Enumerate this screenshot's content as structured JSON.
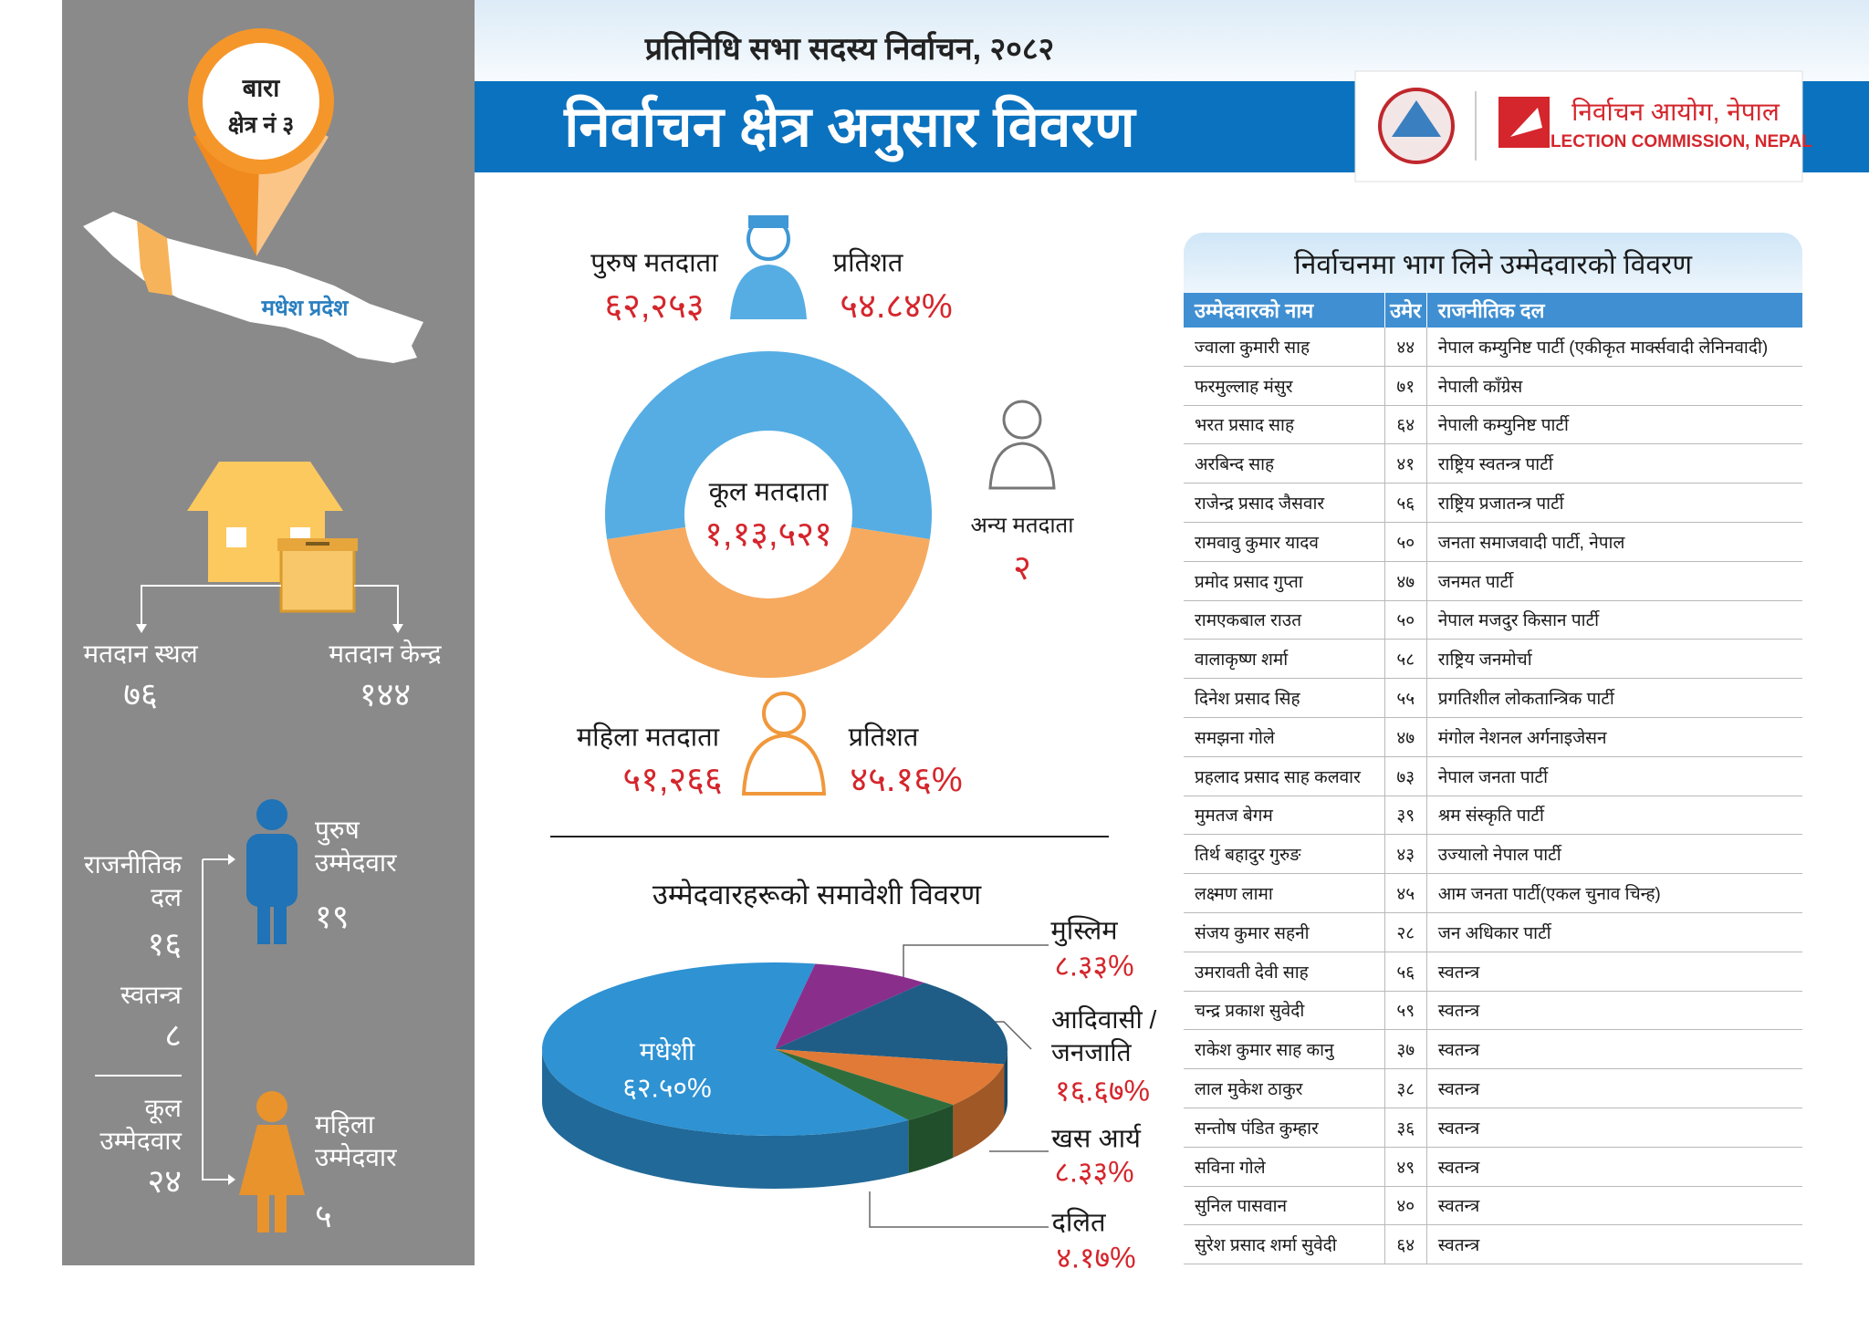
{
  "header": {
    "subtitle": "प्रतिनिधि सभा सदस्य निर्वाचन, २०८२",
    "title": "निर्वाचन क्षेत्र अनुसार विवरण",
    "org_name_np": "निर्वाचन आयोग, नेपाल",
    "org_name_en": "ELECTION COMMISSION, NEPAL"
  },
  "sidebar": {
    "district": "बारा",
    "constituency": "क्षेत्र नं ३",
    "province": "मधेश प्रदेश",
    "polling_places": {
      "label": "मतदान स्थल",
      "value": "७६"
    },
    "polling_centers": {
      "label": "मतदान केन्द्र",
      "value": "१४४"
    },
    "party_candidates": {
      "label": "राजनीतिक दल",
      "value": "१६"
    },
    "independent_candidates": {
      "label": "स्वतन्त्र",
      "value": "८"
    },
    "total_candidates": {
      "label": "कूल उम्मेदवार",
      "value": "२४"
    },
    "male_candidates": {
      "label": "पुरुष उम्मेदवार",
      "value": "१९"
    },
    "female_candidates": {
      "label": "महिला उम्मेदवार",
      "value": "५"
    }
  },
  "chart_data": [
    {
      "type": "donut",
      "center_title": "कूल मतदाता",
      "center_value": "१,१३,५२१",
      "categories": [
        "पुरुष मतदाता",
        "महिला मतदाता",
        "अन्य मतदाता"
      ],
      "values": [
        62253,
        51266,
        2
      ],
      "value_labels": [
        "६२,२५३",
        "५१,२६६",
        "२"
      ],
      "colors": [
        "#56ade3",
        "#f6aa5f",
        "#9a9a9a"
      ],
      "share_title": "प्रतिशत",
      "share_labels": [
        "५४.८४%",
        "४५.१६%"
      ]
    },
    {
      "type": "pie3d",
      "title": "उम्मेदवारहरूको समावेशी विवरण",
      "categories": [
        "मुस्लिम",
        "आदिवासी / जनजाति",
        "खस आर्य",
        "दलित",
        "मधेशी"
      ],
      "values": [
        8.33,
        16.67,
        8.33,
        4.17,
        62.5
      ],
      "value_labels": [
        "८.३३%",
        "१६.६७%",
        "८.३३%",
        "४.१७%",
        "६२.५०%"
      ],
      "colors": [
        "#8a2e8c",
        "#1f5d86",
        "#e07a36",
        "#2f6e3c",
        "#2e92d3"
      ]
    }
  ],
  "table": {
    "title": "निर्वाचनमा भाग लिने उम्मेदवारको विवरण",
    "columns": [
      "उम्मेदवारको नाम",
      "उमेर",
      "राजनीतिक दल"
    ],
    "rows": [
      [
        "ज्वाला कुमारी साह",
        "४४",
        "नेपाल कम्युनिष्ट पार्टी (एकीकृत मार्क्सवादी लेनिनवादी)"
      ],
      [
        "फरमुल्लाह मंसुर",
        "७१",
        "नेपाली काँग्रेस"
      ],
      [
        "भरत प्रसाद साह",
        "६४",
        "नेपाली कम्युनिष्ट पार्टी"
      ],
      [
        "अरबिन्द साह",
        "४१",
        "राष्ट्रिय स्वतन्त्र पार्टी"
      ],
      [
        "राजेन्द्र प्रसाद जैसवार",
        "५६",
        "राष्ट्रिय प्रजातन्त्र पार्टी"
      ],
      [
        "रामवावु कुमार यादव",
        "५०",
        "जनता समाजवादी पार्टी, नेपाल"
      ],
      [
        "प्रमोद प्रसाद गुप्ता",
        "४७",
        "जनमत पार्टी"
      ],
      [
        "रामएकबाल राउत",
        "५०",
        "नेपाल मजदुर किसान पार्टी"
      ],
      [
        "वालाकृष्ण शर्मा",
        "५८",
        "राष्ट्रिय जनमोर्चा"
      ],
      [
        "दिनेश प्रसाद सिह",
        "५५",
        "प्रगतिशील लोकतान्त्रिक पार्टी"
      ],
      [
        "समझना गोले",
        "४७",
        "मंगोल नेशनल अर्गनाइजेसन"
      ],
      [
        "प्रहलाद प्रसाद साह कलवार",
        "७३",
        "नेपाल जनता पार्टी"
      ],
      [
        "मुमतज बेगम",
        "३९",
        "श्रम संस्कृति पार्टी"
      ],
      [
        "तिर्थ बहादुर गुरुङ",
        "४३",
        "उज्यालो नेपाल पार्टी"
      ],
      [
        "लक्ष्मण लामा",
        "४५",
        "आम जनता पार्टी(एकल चुनाव चिन्ह)"
      ],
      [
        "संजय कुमार सहनी",
        "२८",
        "जन अधिकार पार्टी"
      ],
      [
        "उमरावती देवी साह",
        "५६",
        "स्वतन्त्र"
      ],
      [
        "चन्द्र प्रकाश सुवेदी",
        "५९",
        "स्वतन्त्र"
      ],
      [
        "राकेश कुमार साह कानु",
        "३७",
        "स्वतन्त्र"
      ],
      [
        "लाल मुकेश ठाकुर",
        "३८",
        "स्वतन्त्र"
      ],
      [
        "सन्तोष पंडित कुम्हार",
        "३६",
        "स्वतन्त्र"
      ],
      [
        "सविना गोले",
        "४९",
        "स्वतन्त्र"
      ],
      [
        "सुनिल पासवान",
        "४०",
        "स्वतन्त्र"
      ],
      [
        "सुरेश प्रसाद शर्मा सुवेदी",
        "६४",
        "स्वतन्त्र"
      ]
    ]
  }
}
